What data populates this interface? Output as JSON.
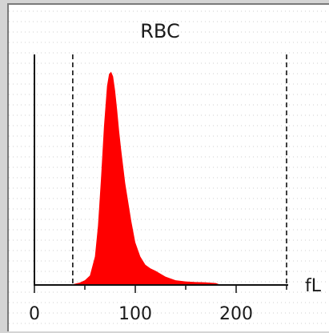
{
  "chart_data": {
    "type": "area",
    "title": "RBC",
    "xlabel": "",
    "ylabel": "",
    "unit_label": "fL",
    "xlim": [
      0,
      250
    ],
    "ylim": [
      0,
      100
    ],
    "x_ticks": [
      0,
      100,
      200
    ],
    "x_tick_labels": [
      "0",
      "100",
      "200"
    ],
    "discriminators": [
      38,
      250
    ],
    "fill_color": "#ff0000",
    "grid": "dotted",
    "series": [
      {
        "x": [
          36,
          40,
          45,
          50,
          55,
          60,
          63,
          66,
          69,
          72,
          74,
          76,
          78,
          80,
          82,
          84,
          86,
          88,
          90,
          93,
          96,
          100,
          105,
          110,
          115,
          120,
          130,
          140,
          150,
          160,
          170,
          180,
          185
        ],
        "y": [
          0,
          0.5,
          1,
          2,
          4,
          12,
          25,
          45,
          67,
          84,
          89,
          90,
          88,
          82,
          74,
          65,
          57,
          50,
          43,
          35,
          27,
          18,
          12,
          8.5,
          7,
          6,
          3.5,
          2,
          1.5,
          1.2,
          1.1,
          0.8,
          0
        ]
      }
    ]
  }
}
